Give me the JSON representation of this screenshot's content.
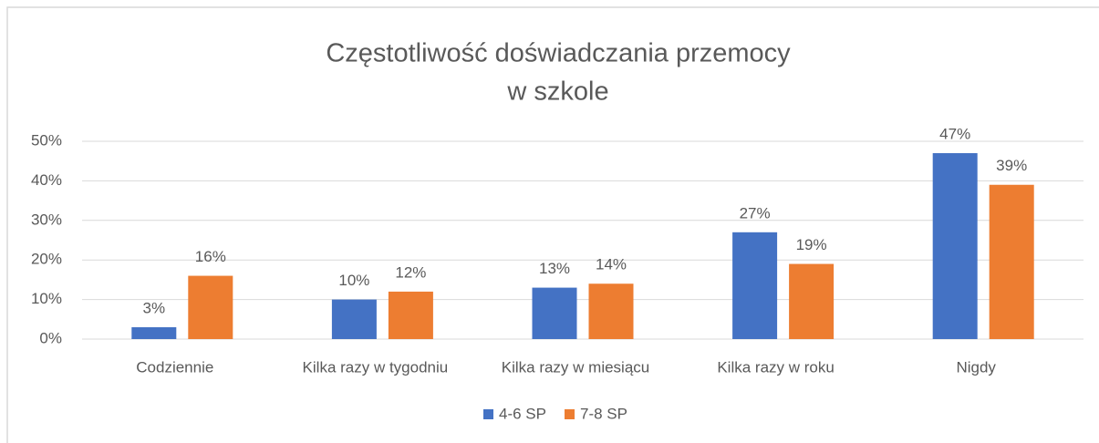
{
  "chart_data": {
    "type": "bar",
    "title": [
      "Częstotliwość doświadczania przemocy",
      "w szkole"
    ],
    "categories": [
      "Codziennie",
      "Kilka razy w tygodniu",
      "Kilka razy w miesiącu",
      "Kilka razy w roku",
      "Nigdy"
    ],
    "series": [
      {
        "name": "4-6 SP",
        "color": "#4472c4",
        "values": [
          3,
          10,
          13,
          27,
          47
        ],
        "value_labels": [
          "3%",
          "10%",
          "13%",
          "27%",
          "47%"
        ]
      },
      {
        "name": "7-8 SP",
        "color": "#ed7d31",
        "values": [
          16,
          12,
          14,
          19,
          39
        ],
        "value_labels": [
          "16%",
          "12%",
          "14%",
          "19%",
          "39%"
        ]
      }
    ],
    "ylim": [
      0,
      50
    ],
    "yticks": [
      {
        "value": 0,
        "label": "0%"
      },
      {
        "value": 10,
        "label": "10%"
      },
      {
        "value": 20,
        "label": "20%"
      },
      {
        "value": 30,
        "label": "30%"
      },
      {
        "value": 40,
        "label": "40%"
      },
      {
        "value": 50,
        "label": "50%"
      }
    ],
    "grid": true,
    "legend": "bottom"
  }
}
